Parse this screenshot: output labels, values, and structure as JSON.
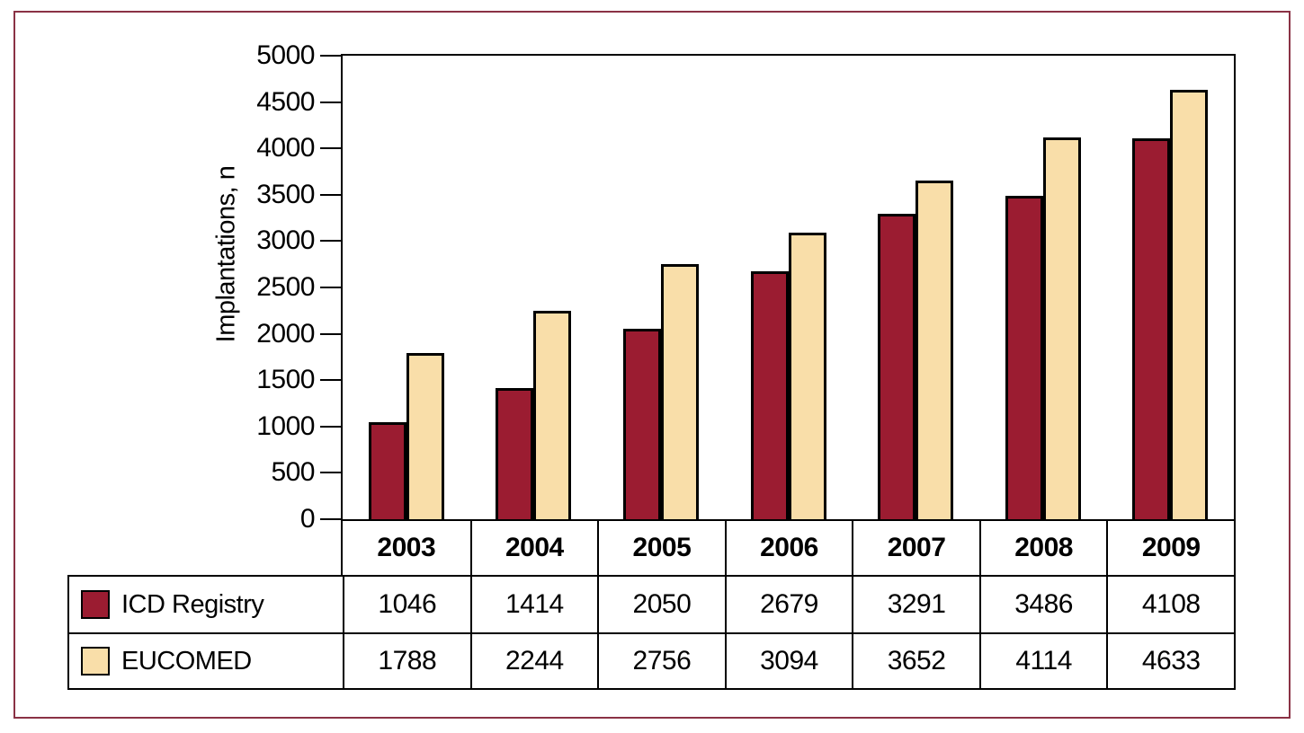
{
  "colors": {
    "frame_border": "#8a3245",
    "axis": "#000000",
    "background": "#ffffff"
  },
  "chart_data": {
    "type": "bar",
    "title": "",
    "ylabel": "Implantations, n",
    "xlabel": "",
    "ylim": [
      0,
      5000
    ],
    "yticks": [
      0,
      500,
      1000,
      1500,
      2000,
      2500,
      3000,
      3500,
      4000,
      4500,
      5000
    ],
    "grid": false,
    "legend_position": "table-left",
    "categories": [
      "2003",
      "2004",
      "2005",
      "2006",
      "2007",
      "2008",
      "2009"
    ],
    "series": [
      {
        "name": "ICD Registry",
        "color": "#9B1C31",
        "values": [
          1046,
          1414,
          2050,
          2679,
          3291,
          3486,
          4108
        ]
      },
      {
        "name": "EUCOMED",
        "color": "#F9DEA9",
        "values": [
          1788,
          2244,
          2756,
          3094,
          3652,
          4114,
          4633
        ]
      }
    ]
  }
}
